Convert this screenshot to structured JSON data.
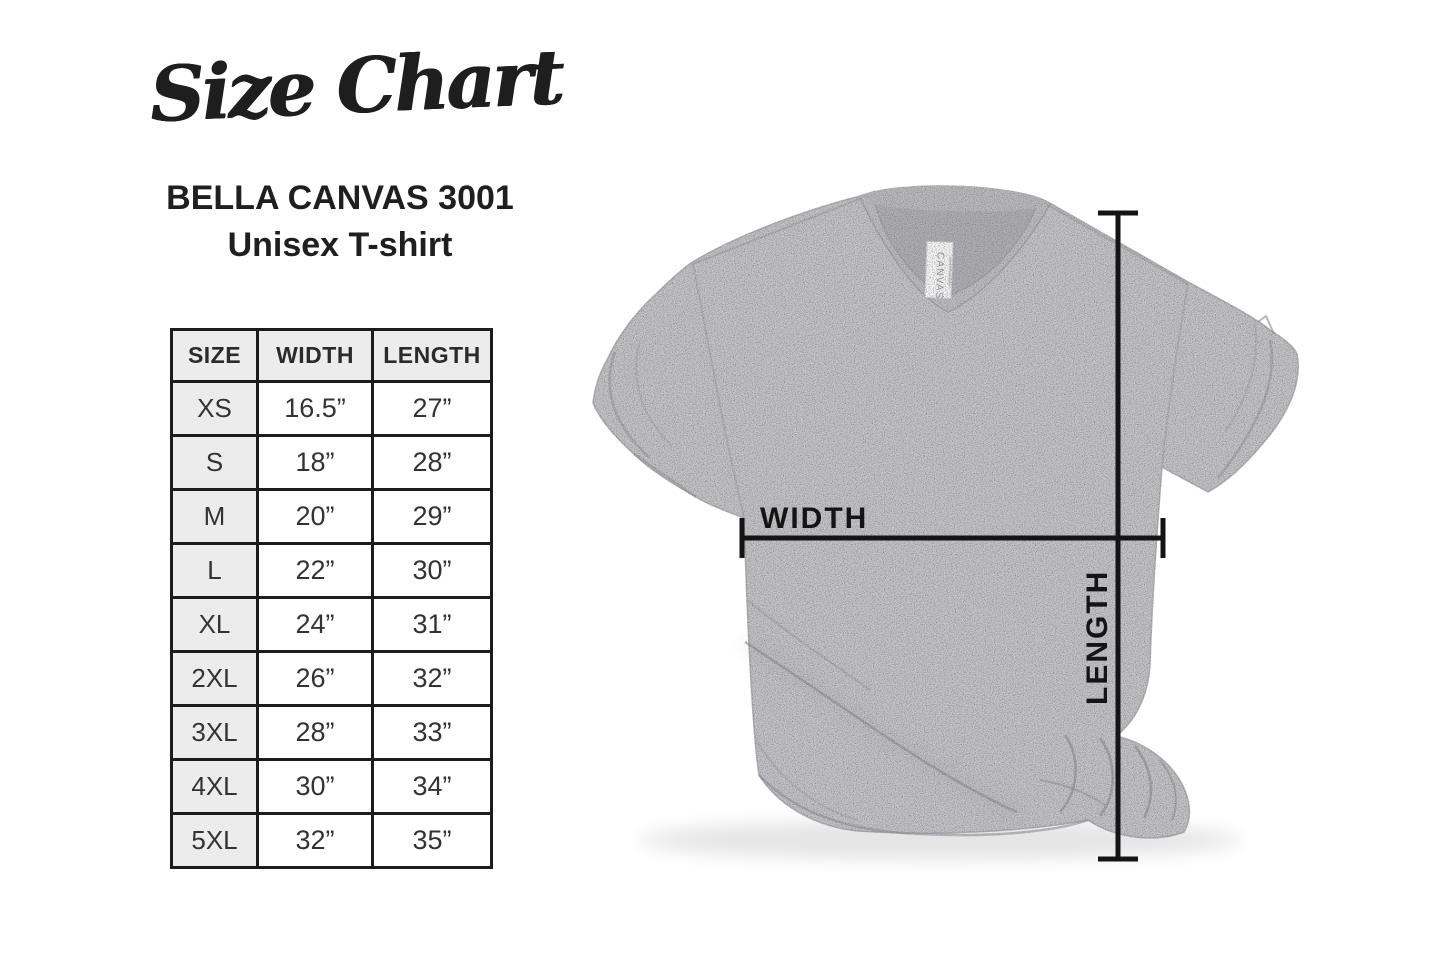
{
  "header": {
    "title": "Size Chart",
    "product": "BELLA CANVAS 3001",
    "product_type": "Unisex T-shirt"
  },
  "size_table": {
    "columns": [
      "SIZE",
      "WIDTH",
      "LENGTH"
    ],
    "rows": [
      [
        "XS",
        "16.5”",
        "27”"
      ],
      [
        "S",
        "18”",
        "28”"
      ],
      [
        "M",
        "20”",
        "29”"
      ],
      [
        "L",
        "22”",
        "30”"
      ],
      [
        "XL",
        "24”",
        "31”"
      ],
      [
        "2XL",
        "26”",
        "32”"
      ],
      [
        "3XL",
        "28”",
        "33”"
      ],
      [
        "4XL",
        "30”",
        "34”"
      ],
      [
        "5XL",
        "32”",
        "35”"
      ]
    ]
  },
  "diagram": {
    "width_label": "WIDTH",
    "length_label": "LENGTH",
    "neck_tag_label": "CANVAS",
    "shirt_color": "#c6c6c8",
    "measure_line_color": "#141414"
  },
  "chart_data": {
    "type": "table",
    "title": "Size Chart - BELLA CANVAS 3001 Unisex T-shirt",
    "columns": [
      "SIZE",
      "WIDTH",
      "LENGTH"
    ],
    "rows": [
      {
        "size": "XS",
        "width_in": 16.5,
        "length_in": 27
      },
      {
        "size": "S",
        "width_in": 18,
        "length_in": 28
      },
      {
        "size": "M",
        "width_in": 20,
        "length_in": 29
      },
      {
        "size": "L",
        "width_in": 22,
        "length_in": 30
      },
      {
        "size": "XL",
        "width_in": 24,
        "length_in": 31
      },
      {
        "size": "2XL",
        "width_in": 26,
        "length_in": 32
      },
      {
        "size": "3XL",
        "width_in": 28,
        "length_in": 33
      },
      {
        "size": "4XL",
        "width_in": 30,
        "length_in": 34
      },
      {
        "size": "5XL",
        "width_in": 32,
        "length_in": 35
      }
    ]
  }
}
